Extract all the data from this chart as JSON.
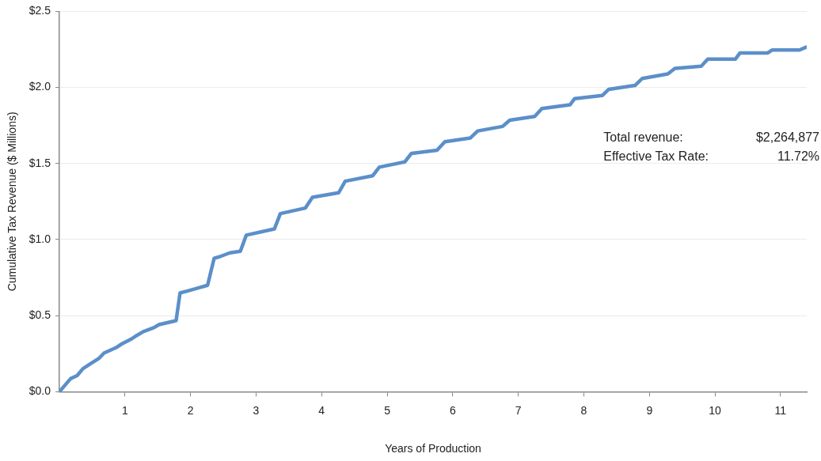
{
  "chart_data": {
    "type": "line",
    "xlabel": "Years of Production",
    "ylabel": "Cumulative Tax Revenue ($ Millions)",
    "annotations": [
      "Total revenue:",
      "$2,264,877",
      "Effective Tax Rate:",
      "11.72%"
    ],
    "x": [
      0,
      0.17,
      0.27,
      0.36,
      0.49,
      0.6,
      0.68,
      0.86,
      0.95,
      1.09,
      1.18,
      1.28,
      1.44,
      1.52,
      1.78,
      1.84,
      1.97,
      2.14,
      2.26,
      2.36,
      2.44,
      2.6,
      2.76,
      2.85,
      3.28,
      3.37,
      3.75,
      3.86,
      4.26,
      4.36,
      4.78,
      4.88,
      5.27,
      5.37,
      5.76,
      5.88,
      6.27,
      6.38,
      6.76,
      6.87,
      7.25,
      7.36,
      7.79,
      7.86,
      8.28,
      8.38,
      8.78,
      8.89,
      9.28,
      9.39,
      9.79,
      9.89,
      10.31,
      10.38,
      10.8,
      10.87,
      11.29,
      11.39
    ],
    "series": [
      {
        "color": "#5b8fc9",
        "values": [
          0,
          0.086,
          0.106,
          0.152,
          0.188,
          0.218,
          0.254,
          0.289,
          0.314,
          0.345,
          0.37,
          0.395,
          0.421,
          0.441,
          0.467,
          0.649,
          0.664,
          0.685,
          0.7,
          0.877,
          0.887,
          0.913,
          0.923,
          1.029,
          1.07,
          1.171,
          1.207,
          1.278,
          1.308,
          1.384,
          1.42,
          1.476,
          1.511,
          1.567,
          1.587,
          1.643,
          1.668,
          1.714,
          1.744,
          1.785,
          1.81,
          1.861,
          1.886,
          1.927,
          1.947,
          1.988,
          2.013,
          2.059,
          2.089,
          2.125,
          2.14,
          2.186,
          2.186,
          2.226,
          2.226,
          2.246,
          2.246,
          2.265
        ]
      }
    ],
    "xlim": [
      0,
      11.4
    ],
    "xticks": [
      1,
      2,
      3,
      4,
      5,
      6,
      7,
      8,
      9,
      10,
      11
    ],
    "ylim": [
      0,
      2.5
    ],
    "yticks": [
      {
        "value": 0,
        "label": "$0.0"
      },
      {
        "value": 0.5,
        "label": "$0.5"
      },
      {
        "value": 1,
        "label": "$1.0"
      },
      {
        "value": 1.5,
        "label": "$1.5"
      },
      {
        "value": 2,
        "label": "$2.0"
      },
      {
        "value": 2.5,
        "label": "$2.5"
      }
    ],
    "grid": "y",
    "legend": false,
    "marker": "none",
    "line_style": "solid"
  }
}
